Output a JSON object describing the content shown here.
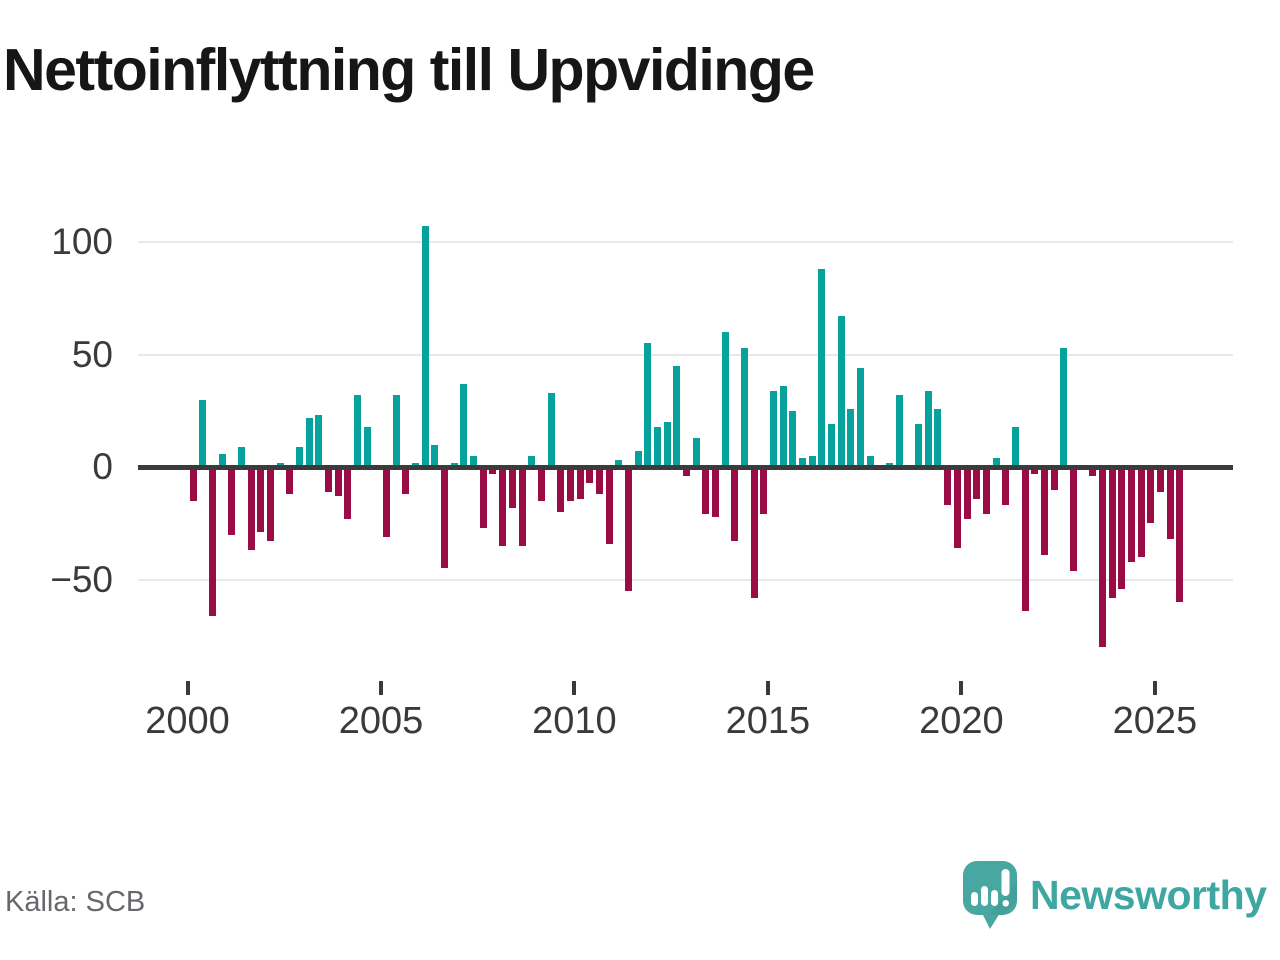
{
  "title": "Nettoinflyttning till Uppvidinge",
  "source": "Källa: SCB",
  "branding": {
    "name": "Newsworthy"
  },
  "chart_data": {
    "type": "bar",
    "title": "Nettoinflyttning till Uppvidinge",
    "frequency": "quarterly",
    "start_period": "2000 Q1",
    "end_period": "2025 Q3",
    "values": [
      -15,
      30,
      -66,
      6,
      -30,
      9,
      -37,
      -29,
      -33,
      2,
      -12,
      9,
      22,
      23,
      -11,
      -13,
      -23,
      32,
      18,
      0,
      -31,
      32,
      -12,
      2,
      107,
      10,
      -45,
      2,
      37,
      5,
      -27,
      -3,
      -35,
      -18,
      -35,
      5,
      -15,
      33,
      -20,
      -15,
      -14,
      -7,
      -12,
      -34,
      3,
      -55,
      7,
      55,
      18,
      20,
      45,
      -4,
      13,
      -21,
      -22,
      60,
      -33,
      53,
      -58,
      -21,
      34,
      36,
      25,
      4,
      5,
      88,
      19,
      67,
      26,
      44,
      5,
      0,
      2,
      32,
      0,
      19,
      34,
      26,
      -17,
      -36,
      -23,
      -14,
      -21,
      4,
      -17,
      18,
      -64,
      -3,
      -39,
      -10,
      53,
      -46,
      0,
      -4,
      -80,
      -58,
      -54,
      -42,
      -40,
      -25,
      -11,
      -32,
      -60
    ],
    "x_tick_labels": [
      "2000",
      "2005",
      "2010",
      "2015",
      "2020",
      "2025"
    ],
    "y_ticks": [
      {
        "label": "100",
        "value": 100
      },
      {
        "label": "50",
        "value": 50
      },
      {
        "label": "0",
        "value": 0
      },
      {
        "label": "−50",
        "value": -50
      }
    ],
    "ylim": [
      -90,
      110
    ],
    "grid": "horizontal",
    "legend": "none",
    "colors": {
      "positive": "#08a29c",
      "negative": "#9a0c46"
    }
  }
}
